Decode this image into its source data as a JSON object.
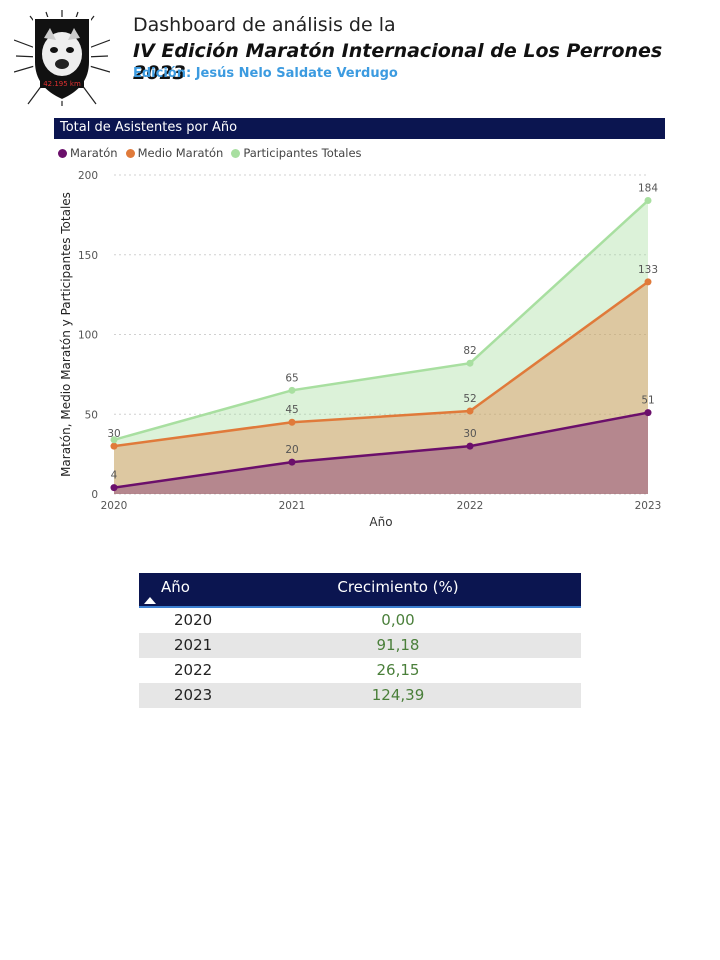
{
  "header": {
    "line1": "Dashboard de análisis de la",
    "line2": "IV Edición Maratón Internacional de Los Perrones 2023",
    "line3": "Edición: Jesús Nelo Saldate Verdugo",
    "logo_text": "42.195 km"
  },
  "chart_title": "Total de Asistentes por Año",
  "colors": {
    "maraton": "#6b0f6b",
    "medio": "#e07a3a",
    "total": "#a8dfa0",
    "header_bg": "#0b1550"
  },
  "chart_data": {
    "type": "area",
    "title": "Total de Asistentes por Año",
    "xlabel": "Año",
    "ylabel": "Maratón, Medio Maratón y Participantes Totales",
    "categories": [
      "2020",
      "2021",
      "2022",
      "2023"
    ],
    "ylim": [
      0,
      200
    ],
    "yticks": [
      0,
      50,
      100,
      150,
      200
    ],
    "grid": true,
    "legend_position": "top-left",
    "series": [
      {
        "name": "Maratón",
        "values": [
          4,
          20,
          30,
          51
        ]
      },
      {
        "name": "Medio Maratón",
        "values": [
          30,
          45,
          52,
          133
        ]
      },
      {
        "name": "Participantes Totales",
        "values": [
          34,
          65,
          82,
          184
        ]
      }
    ],
    "data_labels": {
      "Maratón": [
        "4",
        "20",
        "30",
        "51"
      ],
      "Medio Maratón": [
        "30",
        "45",
        "52",
        "133"
      ],
      "Participantes Totales": [
        "",
        "65",
        "82",
        "184"
      ]
    }
  },
  "table": {
    "col_year": "Año",
    "col_growth": "Crecimiento (%)",
    "rows": [
      {
        "year": "2020",
        "growth": "0,00"
      },
      {
        "year": "2021",
        "growth": "91,18"
      },
      {
        "year": "2022",
        "growth": "26,15"
      },
      {
        "year": "2023",
        "growth": "124,39"
      }
    ]
  }
}
